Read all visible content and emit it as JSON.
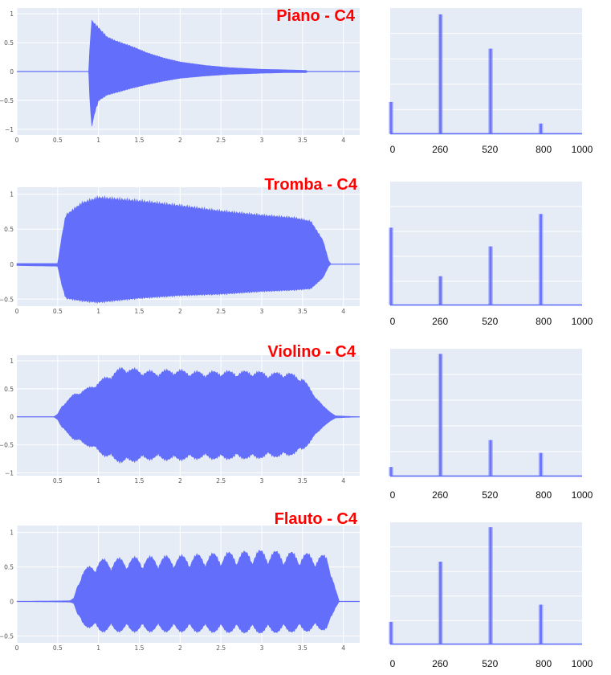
{
  "colors": {
    "plot_bg": "#e5ecf6",
    "grid": "#ffffff",
    "trace": "#636efa",
    "title": "#ff0000"
  },
  "rows": [
    {
      "title": "Piano - C4",
      "chart_data": [
        {
          "type": "line",
          "title": "Piano - C4",
          "xlim": [
            0,
            4.2
          ],
          "ylim": [
            -1.1,
            1.1
          ],
          "xticks": [
            "0",
            "0.5",
            "1",
            "1.5",
            "2",
            "2.5",
            "3",
            "3.5",
            "4"
          ],
          "xtick_values": [
            0,
            0.5,
            1,
            1.5,
            2,
            2.5,
            3,
            3.5,
            4
          ],
          "yticks": [
            "1",
            "0.5",
            "0",
            "−0.5",
            "−1"
          ],
          "ytick_values": [
            1,
            0.5,
            0,
            -0.5,
            -1
          ],
          "envelope": {
            "x": [
              0,
              0.88,
              0.9,
              0.92,
              0.95,
              1.0,
              1.1,
              1.2,
              1.4,
              1.6,
              1.8,
              2.0,
              2.3,
              2.6,
              3.0,
              3.3,
              3.55,
              3.56,
              4.2
            ],
            "upper": [
              0,
              0,
              0.6,
              0.92,
              0.85,
              0.78,
              0.62,
              0.55,
              0.45,
              0.33,
              0.24,
              0.17,
              0.11,
              0.07,
              0.04,
              0.03,
              0.02,
              0,
              0
            ],
            "lower": [
              0,
              0,
              -0.7,
              -0.98,
              -0.75,
              -0.52,
              -0.42,
              -0.38,
              -0.3,
              -0.23,
              -0.17,
              -0.12,
              -0.08,
              -0.05,
              -0.03,
              -0.02,
              -0.02,
              0,
              0
            ]
          }
        },
        {
          "type": "line",
          "xlim": [
            0,
            1000
          ],
          "ylim": [
            0,
            1
          ],
          "xticks": [
            "0",
            "260",
            "520",
            "800",
            "1000"
          ],
          "xtick_values": [
            0,
            260,
            520,
            800,
            1000
          ],
          "peaks": [
            {
              "x": 0,
              "y": 0.26
            },
            {
              "x": 262,
              "y": 0.95
            },
            {
              "x": 523,
              "y": 0.68
            },
            {
              "x": 785,
              "y": 0.09
            }
          ]
        }
      ]
    },
    {
      "title": "Tromba - C4",
      "chart_data": [
        {
          "type": "line",
          "title": "Tromba - C4",
          "xlim": [
            0,
            4.2
          ],
          "ylim": [
            -0.6,
            1.1
          ],
          "xticks": [
            "0",
            "0.5",
            "1",
            "1.5",
            "2",
            "2.5",
            "3",
            "3.5",
            "4"
          ],
          "xtick_values": [
            0,
            0.5,
            1,
            1.5,
            2,
            2.5,
            3,
            3.5,
            4
          ],
          "yticks": [
            "1",
            "0.5",
            "0",
            "−0.5"
          ],
          "ytick_values": [
            1,
            0.5,
            0,
            -0.5
          ],
          "envelope": {
            "x": [
              0,
              0.5,
              0.55,
              0.6,
              0.8,
              1.0,
              1.5,
              2.0,
              2.5,
              3.0,
              3.4,
              3.6,
              3.75,
              3.82,
              3.85,
              4.2
            ],
            "upper": [
              0.01,
              0.01,
              0.4,
              0.72,
              0.9,
              0.98,
              0.93,
              0.86,
              0.78,
              0.72,
              0.68,
              0.63,
              0.35,
              0.05,
              0,
              0
            ],
            "lower": [
              -0.02,
              -0.03,
              -0.3,
              -0.5,
              -0.54,
              -0.56,
              -0.5,
              -0.46,
              -0.44,
              -0.4,
              -0.38,
              -0.36,
              -0.2,
              -0.03,
              0,
              0
            ]
          }
        },
        {
          "type": "line",
          "xlim": [
            0,
            1000
          ],
          "ylim": [
            0,
            1
          ],
          "xticks": [
            "0",
            "260",
            "520",
            "800",
            "1000"
          ],
          "xtick_values": [
            0,
            260,
            520,
            800,
            1000
          ],
          "peaks": [
            {
              "x": 0,
              "y": 0.63
            },
            {
              "x": 262,
              "y": 0.24
            },
            {
              "x": 523,
              "y": 0.48
            },
            {
              "x": 785,
              "y": 0.74
            }
          ]
        }
      ]
    },
    {
      "title": "Violino - C4",
      "chart_data": [
        {
          "type": "line",
          "title": "Violino - C4",
          "xlim": [
            0,
            4.2
          ],
          "ylim": [
            -1.05,
            1.1
          ],
          "xticks": [
            "0.5",
            "1",
            "1.5",
            "2",
            "2.5",
            "3",
            "3.5",
            "4"
          ],
          "xtick_values": [
            0.5,
            1,
            1.5,
            2,
            2.5,
            3,
            3.5,
            4
          ],
          "yticks": [
            "1",
            "0.5",
            "0",
            "−0.5",
            "−1"
          ],
          "ytick_values": [
            1,
            0.5,
            0,
            -0.5,
            -1
          ],
          "envelope": {
            "x": [
              0,
              0.45,
              0.5,
              0.55,
              0.7,
              0.9,
              1.1,
              1.3,
              1.5,
              1.7,
              1.9,
              2.1,
              2.3,
              2.5,
              2.7,
              2.9,
              3.1,
              3.3,
              3.5,
              3.6,
              3.75,
              3.9,
              4.2
            ],
            "upper": [
              0,
              0,
              0.05,
              0.2,
              0.42,
              0.55,
              0.74,
              0.92,
              0.86,
              0.83,
              0.87,
              0.84,
              0.82,
              0.84,
              0.83,
              0.84,
              0.8,
              0.82,
              0.72,
              0.5,
              0.2,
              0.02,
              0
            ],
            "lower": [
              0,
              0,
              -0.05,
              -0.2,
              -0.42,
              -0.55,
              -0.74,
              -0.85,
              -0.8,
              -0.77,
              -0.8,
              -0.78,
              -0.76,
              -0.78,
              -0.76,
              -0.77,
              -0.73,
              -0.73,
              -0.62,
              -0.45,
              -0.18,
              -0.02,
              0
            ]
          },
          "wobble": 0.12
        },
        {
          "type": "line",
          "xlim": [
            0,
            1000
          ],
          "ylim": [
            0,
            1
          ],
          "xticks": [
            "0",
            "260",
            "520",
            "800",
            "1000"
          ],
          "xtick_values": [
            0,
            260,
            520,
            800,
            1000
          ],
          "peaks": [
            {
              "x": 0,
              "y": 0.08
            },
            {
              "x": 262,
              "y": 0.96
            },
            {
              "x": 523,
              "y": 0.29
            },
            {
              "x": 785,
              "y": 0.19
            }
          ]
        }
      ]
    },
    {
      "title": "Flauto - C4",
      "chart_data": [
        {
          "type": "line",
          "title": "Flauto - C4",
          "xlim": [
            0,
            4.2
          ],
          "ylim": [
            -0.6,
            1.1
          ],
          "xticks": [
            "0",
            "0.5",
            "1",
            "1.5",
            "2",
            "2.5",
            "3",
            "3.5",
            "4"
          ],
          "xtick_values": [
            0,
            0.5,
            1,
            1.5,
            2,
            2.5,
            3,
            3.5,
            4
          ],
          "yticks": [
            "1",
            "0.5",
            "0",
            "−0.5"
          ],
          "ytick_values": [
            1,
            0.5,
            0,
            -0.5
          ],
          "envelope": {
            "x": [
              0,
              0.65,
              0.7,
              0.75,
              0.8,
              1.0,
              1.5,
              2.0,
              2.5,
              3.0,
              3.5,
              3.8,
              3.85,
              3.9,
              3.95,
              4.2
            ],
            "upper": [
              0,
              0.01,
              0.05,
              0.3,
              0.45,
              0.62,
              0.66,
              0.68,
              0.72,
              0.76,
              0.72,
              0.68,
              0.5,
              0.2,
              0,
              0
            ],
            "lower": [
              0,
              -0.01,
              -0.03,
              -0.25,
              -0.35,
              -0.45,
              -0.45,
              -0.45,
              -0.46,
              -0.47,
              -0.45,
              -0.42,
              -0.3,
              -0.1,
              0,
              0
            ]
          },
          "wobble": 0.28
        },
        {
          "type": "line",
          "xlim": [
            0,
            1000
          ],
          "ylim": [
            0,
            1
          ],
          "xticks": [
            "0",
            "260",
            "520",
            "800",
            "1000"
          ],
          "xtick_values": [
            0,
            260,
            520,
            800,
            1000
          ],
          "peaks": [
            {
              "x": 0,
              "y": 0.19
            },
            {
              "x": 262,
              "y": 0.68
            },
            {
              "x": 523,
              "y": 0.96
            },
            {
              "x": 785,
              "y": 0.33
            }
          ]
        }
      ]
    }
  ]
}
